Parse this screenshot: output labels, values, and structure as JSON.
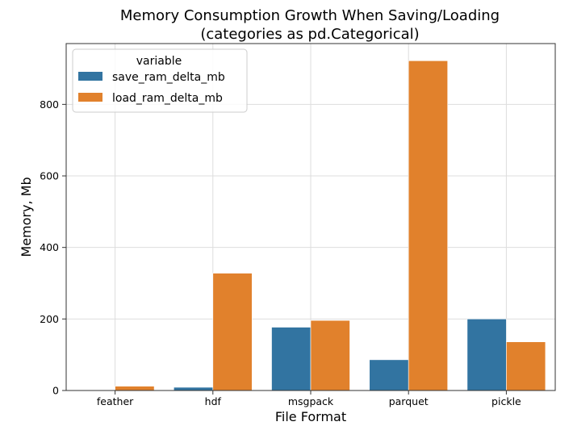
{
  "chart_data": {
    "type": "bar",
    "title": "Memory Consumption Growth When Saving/Loading",
    "subtitle": "(categories as pd.Categorical)",
    "xlabel": "File Format",
    "ylabel": "Memory, Mb",
    "categories": [
      "feather",
      "hdf",
      "msgpack",
      "parquet",
      "pickle"
    ],
    "series": [
      {
        "name": "save_ram_delta_mb",
        "values": [
          0,
          9,
          177,
          86,
          200
        ],
        "color": "#3274a1"
      },
      {
        "name": "load_ram_delta_mb",
        "values": [
          12,
          328,
          196,
          922,
          136
        ],
        "color": "#e1812c"
      }
    ],
    "ylim": [
      0,
      970
    ],
    "yticks": [
      0,
      200,
      400,
      600,
      800
    ],
    "grid": true,
    "legend": {
      "title": "variable",
      "position": "top-left"
    }
  }
}
